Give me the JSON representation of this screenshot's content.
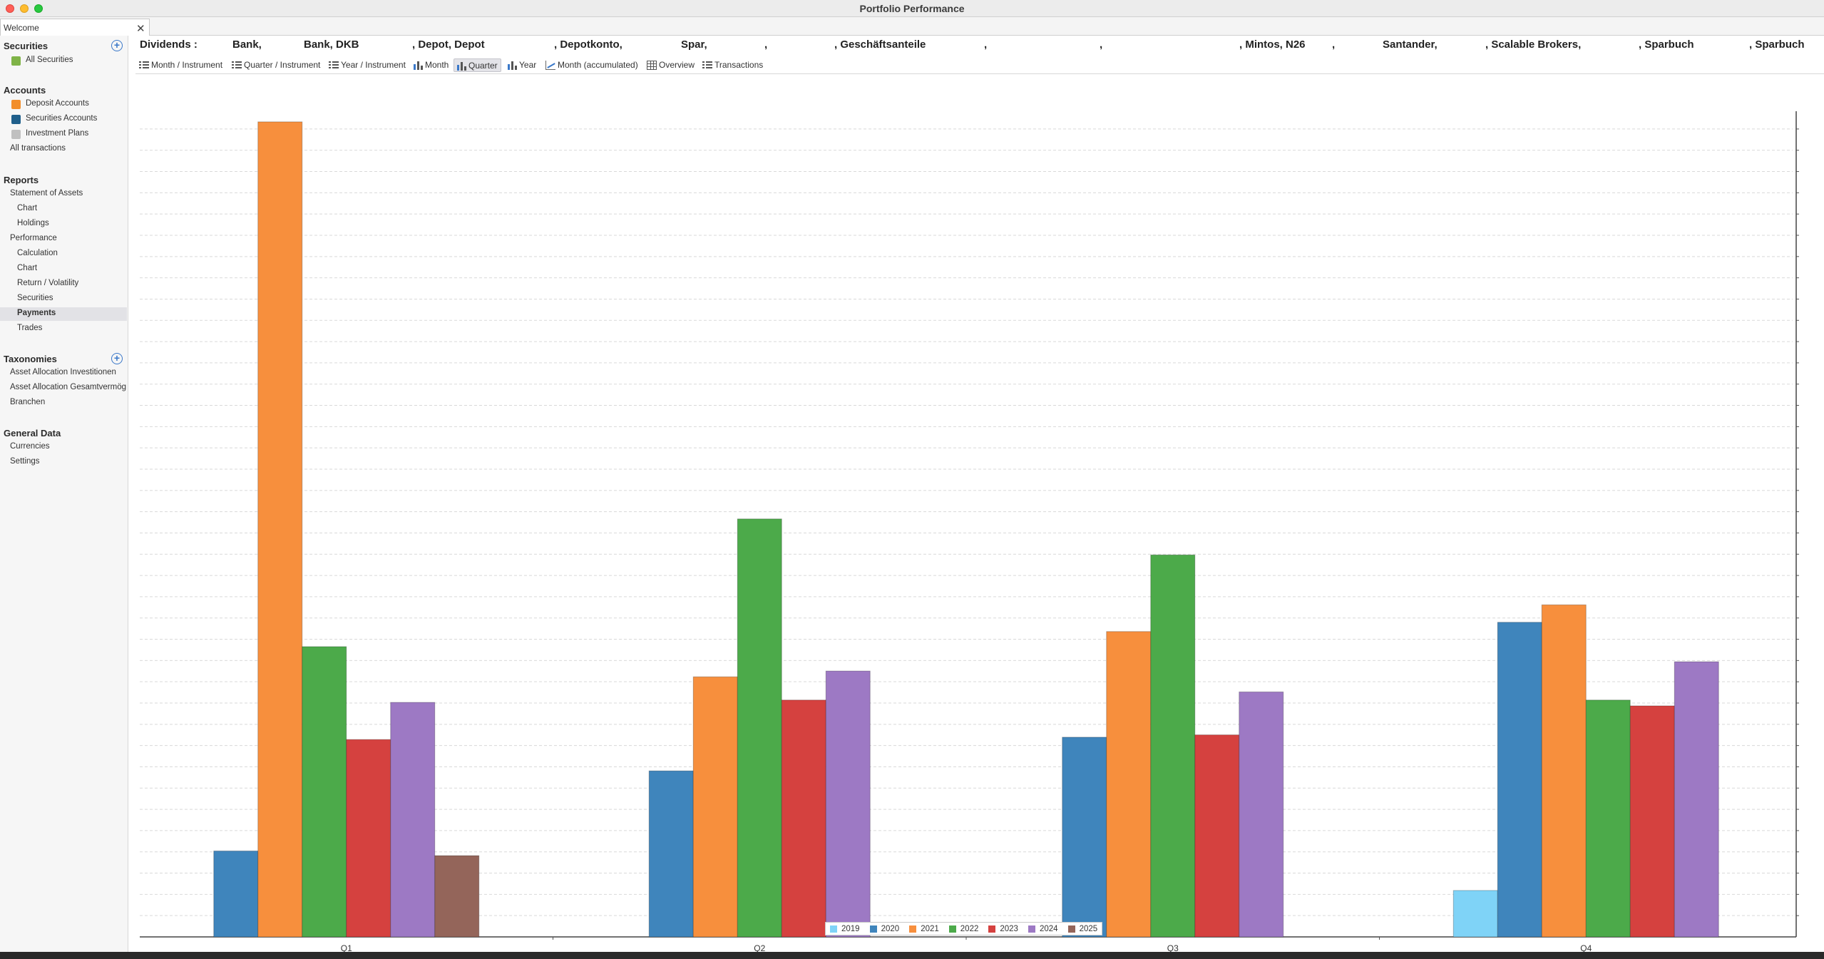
{
  "window": {
    "title": "Portfolio Performance"
  },
  "tabs": {
    "welcome": "Welcome",
    "close": "✕"
  },
  "sidebar": {
    "securities": {
      "title": "Securities",
      "items": [
        "All Securities"
      ]
    },
    "accounts": {
      "title": "Accounts",
      "items": [
        "Deposit Accounts",
        "Securities Accounts",
        "Investment Plans",
        "All transactions"
      ]
    },
    "reports": {
      "title": "Reports",
      "items": [
        "Statement of Assets",
        "Chart",
        "Holdings",
        "Performance",
        "Calculation",
        "Chart",
        "Return / Volatility",
        "Securities",
        "Payments",
        "Trades"
      ]
    },
    "taxonomies": {
      "title": "Taxonomies",
      "items": [
        "Asset Allocation Investitionen",
        "Asset Allocation Gesamtvermög",
        "Branchen"
      ]
    },
    "general": {
      "title": "General Data",
      "items": [
        "Currencies",
        "Settings"
      ]
    },
    "selected": "Payments",
    "colors": {
      "deposit": "#f28e2b",
      "securities": "#1f5f8b",
      "plans": "#c0c0c0",
      "all_securities": "#7fb347"
    }
  },
  "header": {
    "segments": [
      "Dividends :",
      "Bank,",
      "Bank, DKB",
      ", Depot, Depot",
      ", Depotkonto,",
      "Spar,",
      ",",
      ", Geschäftsanteile",
      ",",
      ",",
      ", Mintos, N26",
      ",",
      "Santander,",
      ", Scalable Brokers,",
      ", Sparbuch",
      ", Sparbuch"
    ]
  },
  "toolbar": {
    "buttons": [
      {
        "label": "Month / Instrument",
        "icon": "list-icon"
      },
      {
        "label": "Quarter / Instrument",
        "icon": "list-icon"
      },
      {
        "label": "Year / Instrument",
        "icon": "list-icon"
      },
      {
        "label": "Month",
        "icon": "bar-chart-icon"
      },
      {
        "label": "Quarter",
        "icon": "bar-chart-icon"
      },
      {
        "label": "Year",
        "icon": "bar-chart-icon"
      },
      {
        "label": "Month (accumulated)",
        "icon": "line-chart-icon"
      },
      {
        "label": "Overview",
        "icon": "grid-icon"
      },
      {
        "label": "Transactions",
        "icon": "list-icon"
      }
    ],
    "active": "Quarter"
  },
  "chart_data": {
    "type": "bar",
    "categories": [
      "Q1",
      "Q2",
      "Q3",
      "Q4"
    ],
    "series": [
      {
        "name": "2019",
        "color": "#7fd3f7",
        "values": [
          0,
          0,
          0,
          40
        ]
      },
      {
        "name": "2020",
        "color": "#3f85bc",
        "values": [
          74,
          143,
          172,
          271
        ]
      },
      {
        "name": "2021",
        "color": "#f78f3d",
        "values": [
          702,
          224,
          263,
          286
        ]
      },
      {
        "name": "2022",
        "color": "#4caa4a",
        "values": [
          250,
          360,
          329,
          204
        ]
      },
      {
        "name": "2023",
        "color": "#d5413f",
        "values": [
          170,
          204,
          174,
          199
        ]
      },
      {
        "name": "2024",
        "color": "#9d79c4",
        "values": [
          202,
          229,
          211,
          237
        ]
      },
      {
        "name": "2025",
        "color": "#94655a",
        "values": [
          70,
          0,
          0,
          0
        ]
      }
    ],
    "ylim": [
      0,
      705
    ],
    "grid": true,
    "legend": "bottom-center",
    "ytick_labels_visible": false
  }
}
